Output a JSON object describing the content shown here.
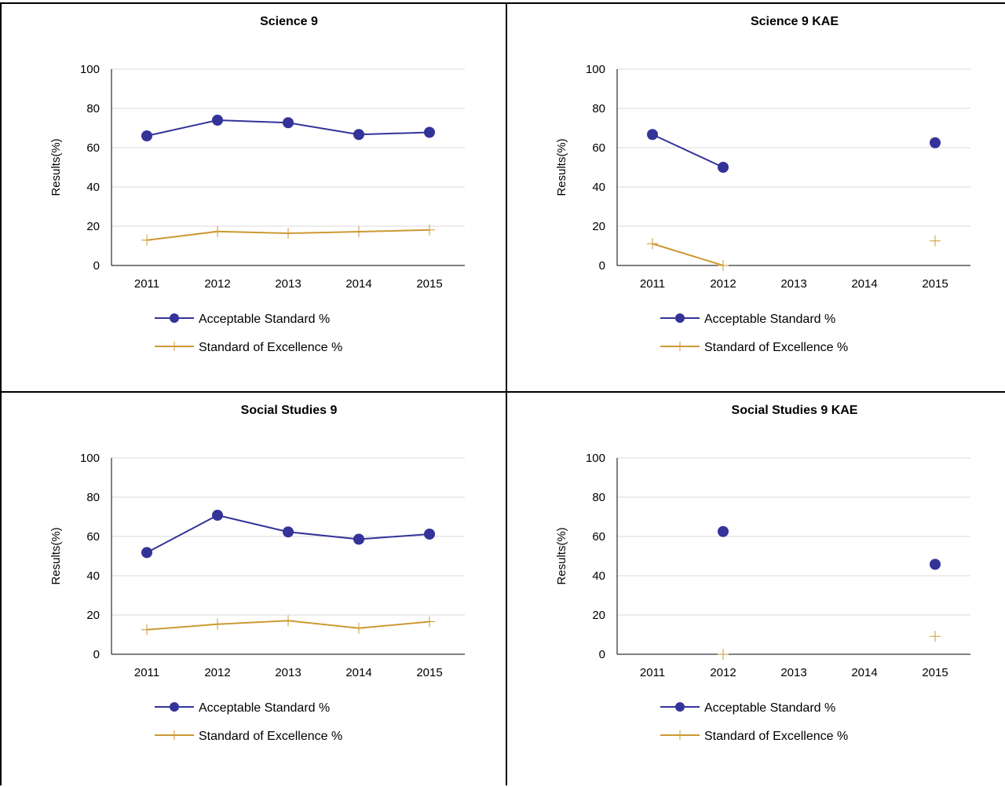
{
  "colors": {
    "acceptable": "#333399",
    "excellence": "#CC9933",
    "grid": "#d9d9d9",
    "axis": "#000000",
    "border": "#000000"
  },
  "chart_data": [
    {
      "type": "line",
      "title": "Science 9",
      "ylabel": "Results(%)",
      "xlabel": "",
      "categories": [
        "2011",
        "2012",
        "2013",
        "2014",
        "2015"
      ],
      "ylim": [
        0,
        100
      ],
      "yticks": [
        "0",
        "20",
        "40",
        "60",
        "80",
        "100"
      ],
      "grid": true,
      "legend": "bottom",
      "series": [
        {
          "name": "Acceptable Standard %",
          "marker": "circle",
          "values": [
            66,
            74,
            72.7,
            66.7,
            67.8
          ]
        },
        {
          "name": "Standard of Excellence %",
          "marker": "plus",
          "values": [
            12.9,
            17.3,
            16.4,
            17.2,
            18.1
          ]
        }
      ]
    },
    {
      "type": "line",
      "title": "Science 9 KAE",
      "ylabel": "Results(%)",
      "xlabel": "",
      "categories": [
        "2011",
        "2012",
        "2013",
        "2014",
        "2015"
      ],
      "ylim": [
        0,
        100
      ],
      "yticks": [
        "0",
        "20",
        "40",
        "60",
        "80",
        "100"
      ],
      "grid": true,
      "legend": "bottom",
      "series": [
        {
          "name": "Acceptable Standard %",
          "marker": "circle",
          "values": [
            66.7,
            50,
            null,
            null,
            62.5
          ]
        },
        {
          "name": "Standard of Excellence %",
          "marker": "plus",
          "values": [
            11.1,
            0,
            null,
            null,
            12.5
          ]
        }
      ]
    },
    {
      "type": "line",
      "title": "Social Studies 9",
      "ylabel": "Results(%)",
      "xlabel": "",
      "categories": [
        "2011",
        "2012",
        "2013",
        "2014",
        "2015"
      ],
      "ylim": [
        0,
        100
      ],
      "yticks": [
        "0",
        "20",
        "40",
        "60",
        "80",
        "100"
      ],
      "grid": true,
      "legend": "bottom",
      "series": [
        {
          "name": "Acceptable Standard %",
          "marker": "circle",
          "values": [
            51.8,
            70.8,
            62.3,
            58.6,
            61.2
          ]
        },
        {
          "name": "Standard of Excellence %",
          "marker": "plus",
          "values": [
            12.5,
            15.3,
            17.1,
            13.3,
            16.6
          ]
        }
      ]
    },
    {
      "type": "line",
      "title": "Social Studies 9 KAE",
      "ylabel": "Results(%)",
      "xlabel": "",
      "categories": [
        "2011",
        "2012",
        "2013",
        "2014",
        "2015"
      ],
      "ylim": [
        0,
        100
      ],
      "yticks": [
        "0",
        "20",
        "40",
        "60",
        "80",
        "100"
      ],
      "grid": true,
      "legend": "bottom",
      "series": [
        {
          "name": "Acceptable Standard %",
          "marker": "circle",
          "values": [
            null,
            62.5,
            null,
            null,
            45.8
          ]
        },
        {
          "name": "Standard of Excellence %",
          "marker": "plus",
          "values": [
            null,
            0,
            null,
            null,
            9.1
          ]
        }
      ]
    }
  ]
}
